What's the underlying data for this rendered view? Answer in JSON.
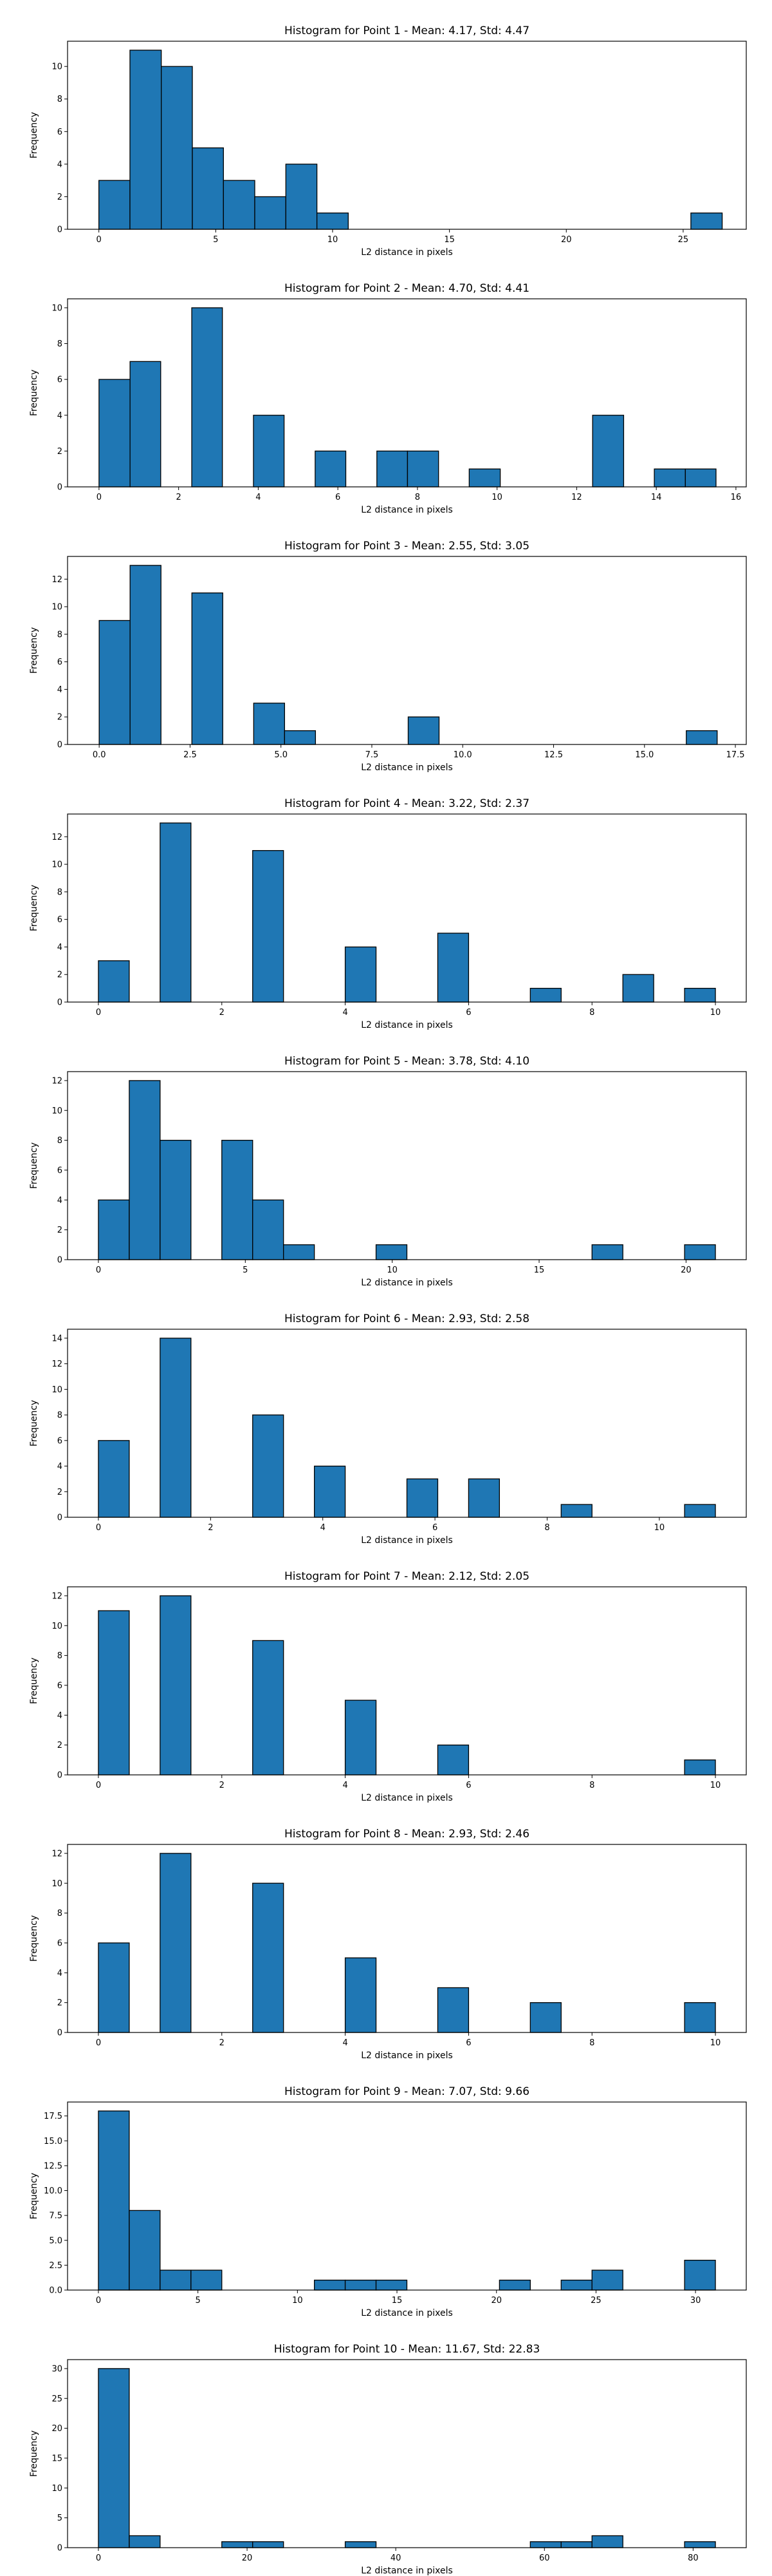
{
  "colors": {
    "bar_fill": "#1f77b4",
    "bar_edge": "#000000",
    "text": "#000000",
    "background": "#ffffff"
  },
  "chart_data": [
    {
      "type": "bar",
      "title": "Histogram for Point 1 - Mean: 4.17, Std: 4.47",
      "xlabel": "L2 distance in pixels",
      "ylabel": "Frequency",
      "xlim": [
        -1.34,
        27.7
      ],
      "ylim": [
        0,
        11.55
      ],
      "xticks": [
        0,
        5,
        10,
        15,
        20,
        25
      ],
      "xtick_labels": [
        "0",
        "5",
        "10",
        "15",
        "20",
        "25"
      ],
      "yticks": [
        0,
        2,
        4,
        6,
        8,
        10
      ],
      "ytick_labels": [
        "0",
        "2",
        "4",
        "6",
        "8",
        "10"
      ],
      "bin_edges": [
        0,
        1.33,
        2.67,
        4,
        5.33,
        6.67,
        8,
        9.33,
        10.67,
        12,
        13.33,
        14.67,
        16,
        17.33,
        18.67,
        20,
        21.33,
        22.67,
        24,
        25.33,
        26.67
      ],
      "values": [
        3,
        11,
        10,
        5,
        3,
        2,
        4,
        1,
        0,
        0,
        0,
        0,
        0,
        0,
        0,
        0,
        0,
        0,
        0,
        1
      ]
    },
    {
      "type": "bar",
      "title": "Histogram for Point 2 - Mean: 4.70, Std: 4.41",
      "xlabel": "L2 distance in pixels",
      "ylabel": "Frequency",
      "xlim": [
        -0.79,
        16.26
      ],
      "ylim": [
        0,
        10.5
      ],
      "xticks": [
        0,
        2,
        4,
        6,
        8,
        10,
        12,
        14,
        16
      ],
      "xtick_labels": [
        "0",
        "2",
        "4",
        "6",
        "8",
        "10",
        "12",
        "14",
        "16"
      ],
      "yticks": [
        0,
        2,
        4,
        6,
        8,
        10
      ],
      "ytick_labels": [
        "0",
        "2",
        "4",
        "6",
        "8",
        "10"
      ],
      "bin_edges": [
        0,
        0.78,
        1.55,
        2.33,
        3.1,
        3.88,
        4.65,
        5.43,
        6.2,
        6.98,
        7.75,
        8.53,
        9.3,
        10.08,
        10.85,
        11.63,
        12.4,
        13.18,
        13.95,
        14.73,
        15.5
      ],
      "values": [
        6,
        7,
        0,
        10,
        0,
        4,
        0,
        2,
        0,
        2,
        2,
        0,
        1,
        0,
        0,
        0,
        4,
        0,
        1,
        1
      ]
    },
    {
      "type": "bar",
      "title": "Histogram for Point 3 - Mean: 2.55, Std: 3.05",
      "xlabel": "L2 distance in pixels",
      "ylabel": "Frequency",
      "xlim": [
        -0.87,
        17.8
      ],
      "ylim": [
        0,
        13.65
      ],
      "xticks": [
        0,
        2.5,
        5,
        7.5,
        10,
        12.5,
        15,
        17.5
      ],
      "xtick_labels": [
        "0.0",
        "2.5",
        "5.0",
        "7.5",
        "10.0",
        "12.5",
        "15.0",
        "17.5"
      ],
      "yticks": [
        0,
        2,
        4,
        6,
        8,
        10,
        12
      ],
      "ytick_labels": [
        "0",
        "2",
        "4",
        "6",
        "8",
        "10",
        "12"
      ],
      "bin_edges": [
        0,
        0.85,
        1.7,
        2.55,
        3.4,
        4.25,
        5.1,
        5.95,
        6.8,
        7.65,
        8.5,
        9.35,
        10.2,
        11.05,
        11.9,
        12.75,
        13.6,
        14.45,
        15.3,
        16.15,
        17
      ],
      "values": [
        9,
        13,
        0,
        11,
        0,
        3,
        1,
        0,
        0,
        0,
        2,
        0,
        0,
        0,
        0,
        0,
        0,
        0,
        0,
        1
      ]
    },
    {
      "type": "bar",
      "title": "Histogram for Point 4 - Mean: 3.22, Std: 2.37",
      "xlabel": "L2 distance in pixels",
      "ylabel": "Frequency",
      "xlim": [
        -0.5,
        10.5
      ],
      "ylim": [
        0,
        13.65
      ],
      "xticks": [
        0,
        2,
        4,
        6,
        8,
        10
      ],
      "xtick_labels": [
        "0",
        "2",
        "4",
        "6",
        "8",
        "10"
      ],
      "yticks": [
        0,
        2,
        4,
        6,
        8,
        10,
        12
      ],
      "ytick_labels": [
        "0",
        "2",
        "4",
        "6",
        "8",
        "10",
        "12"
      ],
      "bin_edges": [
        0,
        0.5,
        1,
        1.5,
        2,
        2.5,
        3,
        3.5,
        4,
        4.5,
        5,
        5.5,
        6,
        6.5,
        7,
        7.5,
        8,
        8.5,
        9,
        9.5,
        10
      ],
      "values": [
        3,
        0,
        13,
        0,
        0,
        11,
        0,
        0,
        4,
        0,
        0,
        5,
        0,
        0,
        1,
        0,
        0,
        2,
        0,
        1
      ]
    },
    {
      "type": "bar",
      "title": "Histogram for Point 5 - Mean: 3.78, Std: 4.10",
      "xlabel": "L2 distance in pixels",
      "ylabel": "Frequency",
      "xlim": [
        -1.05,
        22.05
      ],
      "ylim": [
        0,
        12.6
      ],
      "xticks": [
        0,
        5,
        10,
        15,
        20
      ],
      "xtick_labels": [
        "0",
        "5",
        "10",
        "15",
        "20"
      ],
      "yticks": [
        0,
        2,
        4,
        6,
        8,
        10,
        12
      ],
      "ytick_labels": [
        "0",
        "2",
        "4",
        "6",
        "8",
        "10",
        "12"
      ],
      "bin_edges": [
        0,
        1.05,
        2.1,
        3.15,
        4.2,
        5.25,
        6.3,
        7.35,
        8.4,
        9.45,
        10.5,
        11.55,
        12.6,
        13.65,
        14.7,
        15.75,
        16.8,
        17.85,
        18.9,
        19.95,
        21
      ],
      "values": [
        4,
        12,
        8,
        0,
        8,
        4,
        1,
        0,
        0,
        1,
        0,
        0,
        0,
        0,
        0,
        0,
        1,
        0,
        0,
        1
      ]
    },
    {
      "type": "bar",
      "title": "Histogram for Point 6 - Mean: 2.93, Std: 2.58",
      "xlabel": "L2 distance in pixels",
      "ylabel": "Frequency",
      "xlim": [
        -0.55,
        11.55
      ],
      "ylim": [
        0,
        14.7
      ],
      "xticks": [
        0,
        2,
        4,
        6,
        8,
        10
      ],
      "xtick_labels": [
        "0",
        "2",
        "4",
        "6",
        "8",
        "10"
      ],
      "yticks": [
        0,
        2,
        4,
        6,
        8,
        10,
        12,
        14
      ],
      "ytick_labels": [
        "0",
        "2",
        "4",
        "6",
        "8",
        "10",
        "12",
        "14"
      ],
      "bin_edges": [
        0,
        0.55,
        1.1,
        1.65,
        2.2,
        2.75,
        3.3,
        3.85,
        4.4,
        4.95,
        5.5,
        6.05,
        6.6,
        7.15,
        7.7,
        8.25,
        8.8,
        9.35,
        9.9,
        10.45,
        11
      ],
      "values": [
        6,
        0,
        14,
        0,
        0,
        8,
        0,
        4,
        0,
        0,
        3,
        0,
        3,
        0,
        0,
        1,
        0,
        0,
        0,
        1
      ]
    },
    {
      "type": "bar",
      "title": "Histogram for Point 7 - Mean: 2.12, Std: 2.05",
      "xlabel": "L2 distance in pixels",
      "ylabel": "Frequency",
      "xlim": [
        -0.5,
        10.5
      ],
      "ylim": [
        0,
        12.6
      ],
      "xticks": [
        0,
        2,
        4,
        6,
        8,
        10
      ],
      "xtick_labels": [
        "0",
        "2",
        "4",
        "6",
        "8",
        "10"
      ],
      "yticks": [
        0,
        2,
        4,
        6,
        8,
        10,
        12
      ],
      "ytick_labels": [
        "0",
        "2",
        "4",
        "6",
        "8",
        "10",
        "12"
      ],
      "bin_edges": [
        0,
        0.5,
        1,
        1.5,
        2,
        2.5,
        3,
        3.5,
        4,
        4.5,
        5,
        5.5,
        6,
        6.5,
        7,
        7.5,
        8,
        8.5,
        9,
        9.5,
        10
      ],
      "values": [
        11,
        0,
        12,
        0,
        0,
        9,
        0,
        0,
        5,
        0,
        0,
        2,
        0,
        0,
        0,
        0,
        0,
        0,
        0,
        1
      ]
    },
    {
      "type": "bar",
      "title": "Histogram for Point 8 - Mean: 2.93, Std: 2.46",
      "xlabel": "L2 distance in pixels",
      "ylabel": "Frequency",
      "xlim": [
        -0.5,
        10.5
      ],
      "ylim": [
        0,
        12.6
      ],
      "xticks": [
        0,
        2,
        4,
        6,
        8,
        10
      ],
      "xtick_labels": [
        "0",
        "2",
        "4",
        "6",
        "8",
        "10"
      ],
      "yticks": [
        0,
        2,
        4,
        6,
        8,
        10,
        12
      ],
      "ytick_labels": [
        "0",
        "2",
        "4",
        "6",
        "8",
        "10",
        "12"
      ],
      "bin_edges": [
        0,
        0.5,
        1,
        1.5,
        2,
        2.5,
        3,
        3.5,
        4,
        4.5,
        5,
        5.5,
        6,
        6.5,
        7,
        7.5,
        8,
        8.5,
        9,
        9.5,
        10
      ],
      "values": [
        6,
        0,
        12,
        0,
        0,
        10,
        0,
        0,
        5,
        0,
        0,
        3,
        0,
        0,
        2,
        0,
        0,
        0,
        0,
        2
      ]
    },
    {
      "type": "bar",
      "title": "Histogram for Point 9 - Mean: 7.07, Std: 9.66",
      "xlabel": "L2 distance in pixels",
      "ylabel": "Frequency",
      "xlim": [
        -1.55,
        32.55
      ],
      "ylim": [
        0,
        18.9
      ],
      "xticks": [
        0,
        5,
        10,
        15,
        20,
        25,
        30
      ],
      "xtick_labels": [
        "0",
        "5",
        "10",
        "15",
        "20",
        "25",
        "30"
      ],
      "yticks": [
        0,
        2.5,
        5,
        7.5,
        10,
        12.5,
        15,
        17.5
      ],
      "ytick_labels": [
        "0.0",
        "2.5",
        "5.0",
        "7.5",
        "10.0",
        "12.5",
        "15.0",
        "17.5"
      ],
      "bin_edges": [
        0,
        1.55,
        3.1,
        4.65,
        6.2,
        7.75,
        9.3,
        10.85,
        12.4,
        13.95,
        15.5,
        17.05,
        18.6,
        20.15,
        21.7,
        23.25,
        24.8,
        26.35,
        27.9,
        29.45,
        31
      ],
      "values": [
        18,
        8,
        2,
        2,
        0,
        0,
        0,
        1,
        1,
        1,
        0,
        0,
        0,
        1,
        0,
        1,
        2,
        0,
        0,
        3
      ]
    },
    {
      "type": "bar",
      "title": "Histogram for Point 10 - Mean: 11.67, Std: 22.83",
      "xlabel": "L2 distance in pixels",
      "ylabel": "Frequency",
      "xlim": [
        -4.15,
        87.15
      ],
      "ylim": [
        0,
        31.5
      ],
      "xticks": [
        0,
        20,
        40,
        60,
        80
      ],
      "xtick_labels": [
        "0",
        "20",
        "40",
        "60",
        "80"
      ],
      "yticks": [
        0,
        5,
        10,
        15,
        20,
        25,
        30
      ],
      "ytick_labels": [
        "0",
        "5",
        "10",
        "15",
        "20",
        "25",
        "30"
      ],
      "bin_edges": [
        0,
        4.15,
        8.3,
        12.45,
        16.6,
        20.75,
        24.9,
        29.05,
        33.2,
        37.35,
        41.5,
        45.65,
        49.8,
        53.95,
        58.1,
        62.25,
        66.4,
        70.55,
        74.7,
        78.85,
        83
      ],
      "values": [
        30,
        2,
        0,
        0,
        1,
        1,
        0,
        0,
        1,
        0,
        0,
        0,
        0,
        0,
        1,
        1,
        2,
        0,
        0,
        1
      ]
    }
  ]
}
